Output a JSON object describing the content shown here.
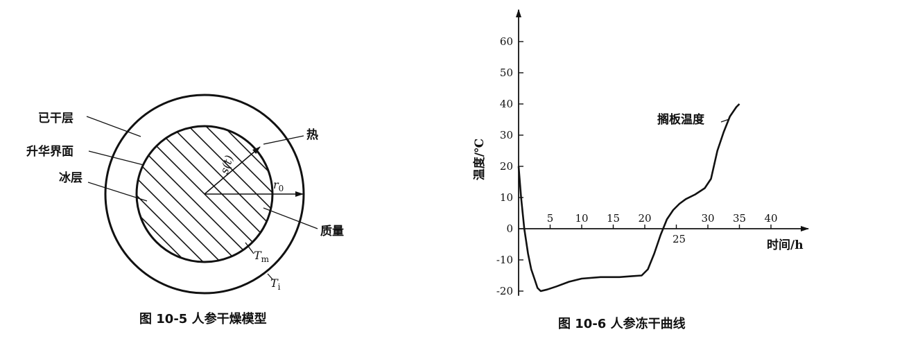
{
  "figure_left": {
    "caption": "图 10-5   人参干燥模型",
    "labels": {
      "dry_layer": "已干层",
      "sublimation_interface": "升华界面",
      "ice_layer": "冰层",
      "heat": "热",
      "mass": "质量",
      "s_t_main": "s(",
      "s_t_var": "t",
      "s_t_close": ")",
      "r_main": "r",
      "r_sub": "0",
      "tm_main": "T",
      "tm_sub": "m",
      "ti_main": "T",
      "ti_sub": "i"
    }
  },
  "figure_right": {
    "caption": "图 10-6   人参冻干曲线",
    "ylabel": "温度/℃",
    "xlabel": "时间/h",
    "annotation": "搁板温度",
    "origin_label": "0"
  },
  "chart_data": {
    "type": "line",
    "title": "",
    "xlabel": "时间/h",
    "ylabel": "温度/℃",
    "xlim": [
      0,
      45
    ],
    "ylim": [
      -22,
      65
    ],
    "x_ticks": [
      5,
      10,
      15,
      20,
      25,
      30,
      35,
      40
    ],
    "y_ticks": [
      60,
      50,
      40,
      30,
      20,
      10,
      -10,
      -20
    ],
    "grid": false,
    "series": [
      {
        "name": "搁板温度",
        "x": [
          0,
          0.4,
          0.9,
          1.5,
          2.0,
          2.5,
          3.0,
          3.5,
          4.5,
          6,
          8,
          10,
          13,
          16,
          18,
          19.5,
          20.5,
          21.5,
          22.5,
          23.5,
          24.5,
          25.5,
          26.5,
          28,
          29.5,
          30.5,
          31.5,
          32.5,
          33.5,
          34.5,
          35
        ],
        "y": [
          20,
          10,
          0,
          -8,
          -13,
          -16,
          -19,
          -20,
          -19.5,
          -18.5,
          -17,
          -16,
          -15.5,
          -15.5,
          -15.2,
          -15,
          -13,
          -8,
          -2,
          3,
          6,
          8,
          9.5,
          11,
          13,
          16,
          25,
          31,
          36,
          39,
          40
        ]
      }
    ]
  }
}
